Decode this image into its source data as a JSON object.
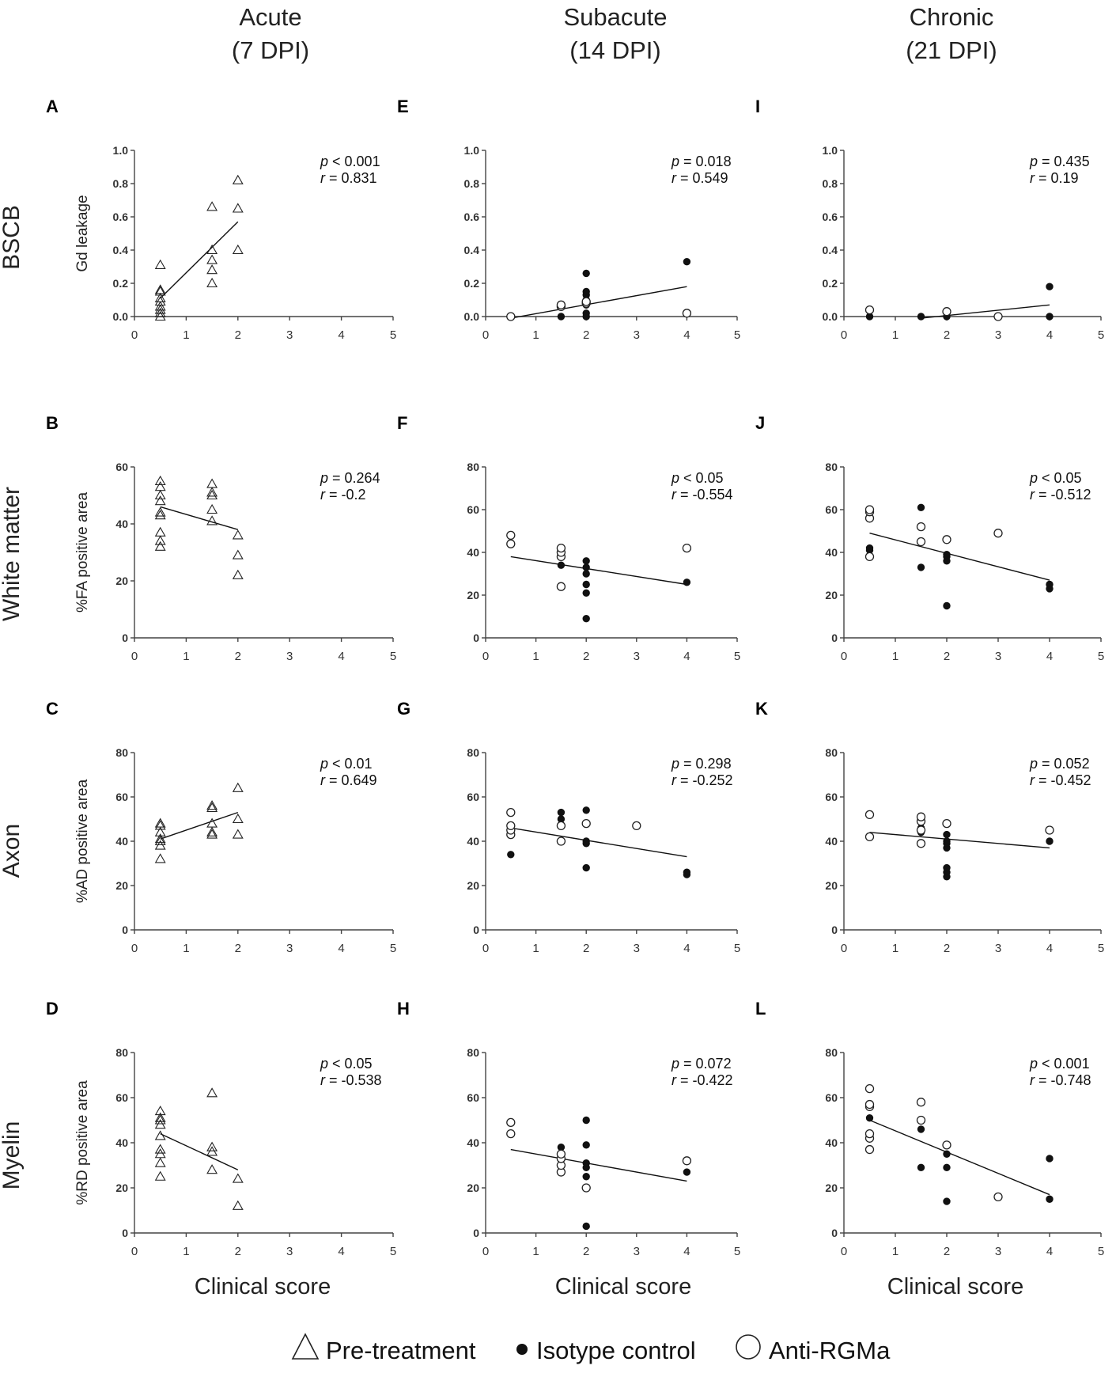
{
  "columns": [
    {
      "title": "Acute",
      "subtitle": "(7 DPI)"
    },
    {
      "title": "Subacute",
      "subtitle": "(14 DPI)"
    },
    {
      "title": "Chronic",
      "subtitle": "(21 DPI)"
    }
  ],
  "rows": [
    {
      "title": "BSCB",
      "ylabel": "Gd leakage"
    },
    {
      "title": "White matter",
      "ylabel": "%FA positive area"
    },
    {
      "title": "Axon",
      "ylabel": "%AD positive area"
    },
    {
      "title": "Myelin",
      "ylabel": "%RD positive area"
    }
  ],
  "xlabel": "Clinical score",
  "legend": [
    {
      "marker": "triangle-open",
      "label": "Pre-treatment"
    },
    {
      "marker": "circle-filled",
      "label": "Isotype control"
    },
    {
      "marker": "circle-open",
      "label": "Anti-RGMa"
    }
  ],
  "colors": {
    "ink": "#111111",
    "background": "#ffffff"
  },
  "chart_data": [
    {
      "panel": "A",
      "type": "scatter",
      "row": 0,
      "col": 0,
      "xlim": [
        0,
        5
      ],
      "ylim": [
        0,
        1.0
      ],
      "yticks": [
        "0.0",
        "0.2",
        "0.4",
        "0.6",
        "0.8",
        "1.0"
      ],
      "p_text": "< 0.001",
      "r_text": "0.831",
      "fit": [
        [
          0.5,
          0.11
        ],
        [
          2,
          0.57
        ]
      ],
      "pre": [
        [
          0.5,
          0.0
        ],
        [
          0.5,
          0.02
        ],
        [
          0.5,
          0.04
        ],
        [
          0.5,
          0.06
        ],
        [
          0.5,
          0.09
        ],
        [
          0.5,
          0.11
        ],
        [
          0.5,
          0.15
        ],
        [
          0.5,
          0.16
        ],
        [
          0.5,
          0.31
        ],
        [
          1.5,
          0.2
        ],
        [
          1.5,
          0.28
        ],
        [
          1.5,
          0.34
        ],
        [
          1.5,
          0.4
        ],
        [
          1.5,
          0.66
        ],
        [
          2,
          0.4
        ],
        [
          2,
          0.65
        ],
        [
          2,
          0.82
        ]
      ],
      "iso": [],
      "anti": []
    },
    {
      "panel": "B",
      "type": "scatter",
      "row": 1,
      "col": 0,
      "xlim": [
        0,
        5
      ],
      "ylim": [
        0,
        60
      ],
      "yticks": [
        "0",
        "20",
        "40",
        "60"
      ],
      "p_text": "= 0.264",
      "r_text": "-0.2",
      "fit": [
        [
          0.5,
          46
        ],
        [
          2,
          38
        ]
      ],
      "pre": [
        [
          0.5,
          32
        ],
        [
          0.5,
          34
        ],
        [
          0.5,
          37
        ],
        [
          0.5,
          43
        ],
        [
          0.5,
          44
        ],
        [
          0.5,
          48
        ],
        [
          0.5,
          50
        ],
        [
          0.5,
          53
        ],
        [
          0.5,
          55
        ],
        [
          1.5,
          41
        ],
        [
          1.5,
          45
        ],
        [
          1.5,
          50
        ],
        [
          1.5,
          51
        ],
        [
          1.5,
          54
        ],
        [
          2,
          22
        ],
        [
          2,
          29
        ],
        [
          2,
          36
        ]
      ],
      "iso": [],
      "anti": []
    },
    {
      "panel": "C",
      "type": "scatter",
      "row": 2,
      "col": 0,
      "xlim": [
        0,
        5
      ],
      "ylim": [
        0,
        80
      ],
      "yticks": [
        "0",
        "20",
        "40",
        "60",
        "80"
      ],
      "p_text": "< 0.01",
      "r_text": "0.649",
      "fit": [
        [
          0.5,
          41
        ],
        [
          2,
          53
        ]
      ],
      "pre": [
        [
          0.5,
          32
        ],
        [
          0.5,
          38
        ],
        [
          0.5,
          40
        ],
        [
          0.5,
          41
        ],
        [
          0.5,
          44
        ],
        [
          0.5,
          47
        ],
        [
          0.5,
          48
        ],
        [
          1.5,
          43
        ],
        [
          1.5,
          44
        ],
        [
          1.5,
          48
        ],
        [
          1.5,
          55
        ],
        [
          1.5,
          56
        ],
        [
          2,
          43
        ],
        [
          2,
          50
        ],
        [
          2,
          64
        ]
      ],
      "iso": [],
      "anti": []
    },
    {
      "panel": "D",
      "type": "scatter",
      "row": 3,
      "col": 0,
      "xlim": [
        0,
        5
      ],
      "ylim": [
        0,
        80
      ],
      "yticks": [
        "0",
        "20",
        "40",
        "60",
        "80"
      ],
      "p_text": "< 0.05",
      "r_text": "-0.538",
      "fit": [
        [
          0.5,
          44
        ],
        [
          2,
          28
        ]
      ],
      "pre": [
        [
          0.5,
          25
        ],
        [
          0.5,
          31
        ],
        [
          0.5,
          35
        ],
        [
          0.5,
          37
        ],
        [
          0.5,
          43
        ],
        [
          0.5,
          48
        ],
        [
          0.5,
          50
        ],
        [
          0.5,
          51
        ],
        [
          0.5,
          54
        ],
        [
          1.5,
          28
        ],
        [
          1.5,
          36
        ],
        [
          1.5,
          38
        ],
        [
          1.5,
          62
        ],
        [
          2,
          12
        ],
        [
          2,
          24
        ]
      ],
      "iso": [],
      "anti": []
    },
    {
      "panel": "E",
      "type": "scatter",
      "row": 0,
      "col": 1,
      "xlim": [
        0,
        5
      ],
      "ylim": [
        0,
        1.0
      ],
      "yticks": [
        "0.0",
        "0.2",
        "0.4",
        "0.6",
        "0.8",
        "1.0"
      ],
      "p_text": "= 0.018",
      "r_text": "0.549",
      "fit": [
        [
          0.5,
          -0.01
        ],
        [
          4,
          0.18
        ]
      ],
      "pre": [],
      "iso": [
        [
          1.5,
          0.0
        ],
        [
          2,
          0.0
        ],
        [
          2,
          0.02
        ],
        [
          2,
          0.07
        ],
        [
          2,
          0.1
        ],
        [
          2,
          0.13
        ],
        [
          2,
          0.15
        ],
        [
          2,
          0.26
        ],
        [
          4,
          0.33
        ]
      ],
      "anti": [
        [
          0.5,
          0.0
        ],
        [
          1.5,
          0.06
        ],
        [
          1.5,
          0.07
        ],
        [
          2,
          0.08
        ],
        [
          2,
          0.09
        ],
        [
          4,
          0.02
        ]
      ]
    },
    {
      "panel": "F",
      "type": "scatter",
      "row": 1,
      "col": 1,
      "xlim": [
        0,
        5
      ],
      "ylim": [
        0,
        80
      ],
      "yticks": [
        "0",
        "20",
        "40",
        "60",
        "80"
      ],
      "p_text": "< 0.05",
      "r_text": "-0.554",
      "fit": [
        [
          0.5,
          38
        ],
        [
          4,
          25
        ]
      ],
      "pre": [],
      "iso": [
        [
          1.5,
          34
        ],
        [
          2,
          9
        ],
        [
          2,
          21
        ],
        [
          2,
          25
        ],
        [
          2,
          30
        ],
        [
          2,
          33
        ],
        [
          2,
          36
        ],
        [
          4,
          26
        ]
      ],
      "anti": [
        [
          0.5,
          44
        ],
        [
          0.5,
          48
        ],
        [
          1.5,
          24
        ],
        [
          1.5,
          38
        ],
        [
          1.5,
          40
        ],
        [
          1.5,
          42
        ],
        [
          4,
          42
        ]
      ]
    },
    {
      "panel": "G",
      "type": "scatter",
      "row": 2,
      "col": 1,
      "xlim": [
        0,
        5
      ],
      "ylim": [
        0,
        80
      ],
      "yticks": [
        "0",
        "20",
        "40",
        "60",
        "80"
      ],
      "p_text": "= 0.298",
      "r_text": "-0.252",
      "fit": [
        [
          0.5,
          46
        ],
        [
          4,
          33
        ]
      ],
      "pre": [],
      "iso": [
        [
          0.5,
          34
        ],
        [
          1.5,
          50
        ],
        [
          1.5,
          53
        ],
        [
          2,
          28
        ],
        [
          2,
          39
        ],
        [
          2,
          40
        ],
        [
          2,
          54
        ],
        [
          4,
          25
        ],
        [
          4,
          26
        ]
      ],
      "anti": [
        [
          0.5,
          43
        ],
        [
          0.5,
          45
        ],
        [
          0.5,
          47
        ],
        [
          0.5,
          53
        ],
        [
          1.5,
          40
        ],
        [
          1.5,
          47
        ],
        [
          2,
          48
        ],
        [
          3,
          47
        ]
      ]
    },
    {
      "panel": "H",
      "type": "scatter",
      "row": 3,
      "col": 1,
      "xlim": [
        0,
        5
      ],
      "ylim": [
        0,
        80
      ],
      "yticks": [
        "0",
        "20",
        "40",
        "60",
        "80"
      ],
      "p_text": "= 0.072",
      "r_text": "-0.422",
      "fit": [
        [
          0.5,
          37
        ],
        [
          4,
          23
        ]
      ],
      "pre": [],
      "iso": [
        [
          1.5,
          38
        ],
        [
          2,
          3
        ],
        [
          2,
          25
        ],
        [
          2,
          29
        ],
        [
          2,
          31
        ],
        [
          2,
          39
        ],
        [
          2,
          50
        ],
        [
          4,
          27
        ]
      ],
      "anti": [
        [
          0.5,
          44
        ],
        [
          0.5,
          49
        ],
        [
          1.5,
          27
        ],
        [
          1.5,
          30
        ],
        [
          1.5,
          33
        ],
        [
          1.5,
          35
        ],
        [
          2,
          20
        ],
        [
          4,
          32
        ]
      ]
    },
    {
      "panel": "I",
      "type": "scatter",
      "row": 0,
      "col": 2,
      "xlim": [
        0,
        5
      ],
      "ylim": [
        0,
        1.0
      ],
      "yticks": [
        "0.0",
        "0.2",
        "0.4",
        "0.6",
        "0.8",
        "1.0"
      ],
      "p_text": "= 0.435",
      "r_text": "0.19",
      "fit": [
        [
          1.5,
          -0.01
        ],
        [
          4,
          0.07
        ]
      ],
      "pre": [],
      "iso": [
        [
          0.5,
          0.0
        ],
        [
          1.5,
          0.0
        ],
        [
          2,
          0.0
        ],
        [
          4,
          0.0
        ],
        [
          4,
          0.18
        ]
      ],
      "anti": [
        [
          0.5,
          0.04
        ],
        [
          2,
          0.03
        ],
        [
          3,
          0.0
        ]
      ]
    },
    {
      "panel": "J",
      "type": "scatter",
      "row": 1,
      "col": 2,
      "xlim": [
        0,
        5
      ],
      "ylim": [
        0,
        80
      ],
      "yticks": [
        "0",
        "20",
        "40",
        "60",
        "80"
      ],
      "p_text": "< 0.05",
      "r_text": "-0.512",
      "fit": [
        [
          0.5,
          49
        ],
        [
          4,
          27
        ]
      ],
      "pre": [],
      "iso": [
        [
          0.5,
          41
        ],
        [
          0.5,
          42
        ],
        [
          1.5,
          33
        ],
        [
          1.5,
          61
        ],
        [
          2,
          15
        ],
        [
          2,
          36
        ],
        [
          2,
          38
        ],
        [
          2,
          39
        ],
        [
          4,
          23
        ],
        [
          4,
          25
        ]
      ],
      "anti": [
        [
          0.5,
          38
        ],
        [
          0.5,
          56
        ],
        [
          0.5,
          59
        ],
        [
          0.5,
          60
        ],
        [
          1.5,
          45
        ],
        [
          1.5,
          52
        ],
        [
          2,
          46
        ],
        [
          3,
          49
        ]
      ]
    },
    {
      "panel": "K",
      "type": "scatter",
      "row": 2,
      "col": 2,
      "xlim": [
        0,
        5
      ],
      "ylim": [
        0,
        80
      ],
      "yticks": [
        "0",
        "20",
        "40",
        "60",
        "80"
      ],
      "p_text": "= 0.052",
      "r_text": "-0.452",
      "fit": [
        [
          0.5,
          44
        ],
        [
          4,
          37
        ]
      ],
      "pre": [],
      "iso": [
        [
          1.5,
          44
        ],
        [
          1.5,
          46
        ],
        [
          2,
          24
        ],
        [
          2,
          26
        ],
        [
          2,
          28
        ],
        [
          2,
          37
        ],
        [
          2,
          39
        ],
        [
          2,
          40
        ],
        [
          2,
          43
        ],
        [
          4,
          40
        ]
      ],
      "anti": [
        [
          0.5,
          42
        ],
        [
          0.5,
          52
        ],
        [
          1.5,
          39
        ],
        [
          1.5,
          45
        ],
        [
          1.5,
          49
        ],
        [
          1.5,
          51
        ],
        [
          2,
          48
        ],
        [
          4,
          45
        ]
      ]
    },
    {
      "panel": "L",
      "type": "scatter",
      "row": 3,
      "col": 2,
      "xlim": [
        0,
        5
      ],
      "ylim": [
        0,
        80
      ],
      "yticks": [
        "0",
        "20",
        "40",
        "60",
        "80"
      ],
      "p_text": "< 0.001",
      "r_text": "-0.748",
      "fit": [
        [
          0.5,
          50
        ],
        [
          4,
          17
        ]
      ],
      "pre": [],
      "iso": [
        [
          0.5,
          51
        ],
        [
          1.5,
          29
        ],
        [
          1.5,
          46
        ],
        [
          2,
          14
        ],
        [
          2,
          29
        ],
        [
          2,
          35
        ],
        [
          4,
          15
        ],
        [
          4,
          33
        ]
      ],
      "anti": [
        [
          0.5,
          37
        ],
        [
          0.5,
          42
        ],
        [
          0.5,
          44
        ],
        [
          0.5,
          56
        ],
        [
          0.5,
          57
        ],
        [
          0.5,
          64
        ],
        [
          1.5,
          50
        ],
        [
          1.5,
          58
        ],
        [
          2,
          39
        ],
        [
          3,
          16
        ]
      ]
    }
  ]
}
